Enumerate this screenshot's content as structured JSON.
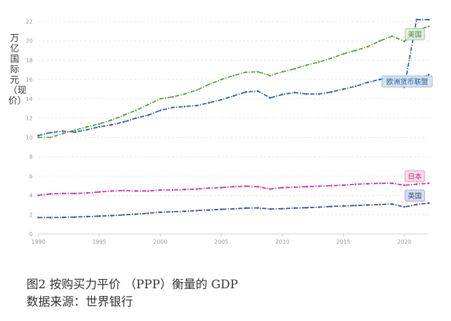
{
  "caption": {
    "line1": "图2  按购买力平价 （PPP）衡量的 GDP",
    "line2": "数据来源：世界银行"
  },
  "chart_data": {
    "type": "line",
    "ylabel": "万亿国际元（现价）",
    "ylim": [
      0,
      22
    ],
    "yticks": [
      0,
      2,
      4,
      6,
      8,
      10,
      12,
      14,
      16,
      18,
      20,
      22
    ],
    "xlim": [
      1990,
      2022
    ],
    "xticks": [
      1990,
      1995,
      2000,
      2005,
      2010,
      2015,
      2020
    ],
    "grid": true,
    "x": [
      1990,
      1991,
      1992,
      1993,
      1994,
      1995,
      1996,
      1997,
      1998,
      1999,
      2000,
      2001,
      2002,
      2003,
      2004,
      2005,
      2006,
      2007,
      2008,
      2009,
      2010,
      2011,
      2012,
      2013,
      2014,
      2015,
      2016,
      2017,
      2018,
      2019,
      2020,
      2021,
      2022
    ],
    "series": [
      {
        "name": "",
        "color": "#2f5fa7",
        "values": [
          10.2,
          10.5,
          10.65,
          10.55,
          10.8,
          11.1,
          11.3,
          11.6,
          12.0,
          12.3,
          12.8,
          13.1,
          13.2,
          13.3,
          13.6,
          13.9,
          14.3,
          14.7,
          14.8,
          14.1,
          14.45,
          14.65,
          14.5,
          14.5,
          14.7,
          15.0,
          15.3,
          15.7,
          16.0,
          16.2,
          15.2,
          22.2,
          22.2
        ]
      },
      {
        "name": "美国",
        "color": "#5aa03c",
        "values": [
          10.0,
          10.0,
          10.4,
          10.75,
          11.1,
          11.4,
          11.8,
          12.3,
          12.8,
          13.4,
          14.0,
          14.2,
          14.5,
          14.9,
          15.5,
          16.0,
          16.4,
          16.75,
          16.8,
          16.4,
          16.8,
          17.1,
          17.5,
          17.8,
          18.2,
          18.65,
          19.0,
          19.4,
          20.0,
          20.5,
          19.95,
          21.1,
          21.5
        ]
      },
      {
        "name": "欧洲货币联盟",
        "color": "#2f6ba7",
        "values": [
          null,
          null,
          null,
          null,
          null,
          null,
          null,
          null,
          null,
          null,
          null,
          null,
          null,
          null,
          null,
          null,
          null,
          null,
          null,
          null,
          null,
          null,
          null,
          null,
          null,
          null,
          null,
          null,
          null,
          null,
          null,
          15.9,
          16.5
        ]
      },
      {
        "name": "日本",
        "color": "#d6338a",
        "values": [
          4.0,
          4.15,
          4.2,
          4.2,
          4.25,
          4.35,
          4.45,
          4.5,
          4.45,
          4.45,
          4.55,
          4.55,
          4.6,
          4.65,
          4.75,
          4.8,
          4.9,
          4.95,
          4.9,
          4.65,
          4.8,
          4.85,
          4.9,
          4.95,
          5.0,
          5.05,
          5.15,
          5.2,
          5.25,
          5.25,
          5.05,
          5.15,
          5.25
        ]
      },
      {
        "name": "英国",
        "color": "#3a5293",
        "values": [
          1.7,
          1.7,
          1.72,
          1.75,
          1.8,
          1.85,
          1.9,
          1.98,
          2.05,
          2.15,
          2.25,
          2.3,
          2.35,
          2.42,
          2.48,
          2.55,
          2.6,
          2.68,
          2.7,
          2.58,
          2.62,
          2.68,
          2.72,
          2.78,
          2.85,
          2.9,
          2.95,
          3.0,
          3.05,
          3.1,
          2.8,
          3.05,
          3.2
        ]
      }
    ],
    "series_labels": [
      "美国",
      "欧洲货币联盟",
      "日本",
      "英国"
    ]
  },
  "label_colors": {
    "美国": {
      "bg": "#dfeedd",
      "border": "#9fc79a",
      "text": "#4c8a3c"
    },
    "欧洲货币联盟": {
      "bg": "#cfe0f0",
      "border": "#95b9dc",
      "text": "#2f5d93"
    },
    "日本": {
      "bg": "#f7d7e6",
      "border": "#e39abd",
      "text": "#b82d72"
    },
    "英国": {
      "bg": "#d6dbeb",
      "border": "#98a3c6",
      "text": "#354a84"
    }
  }
}
